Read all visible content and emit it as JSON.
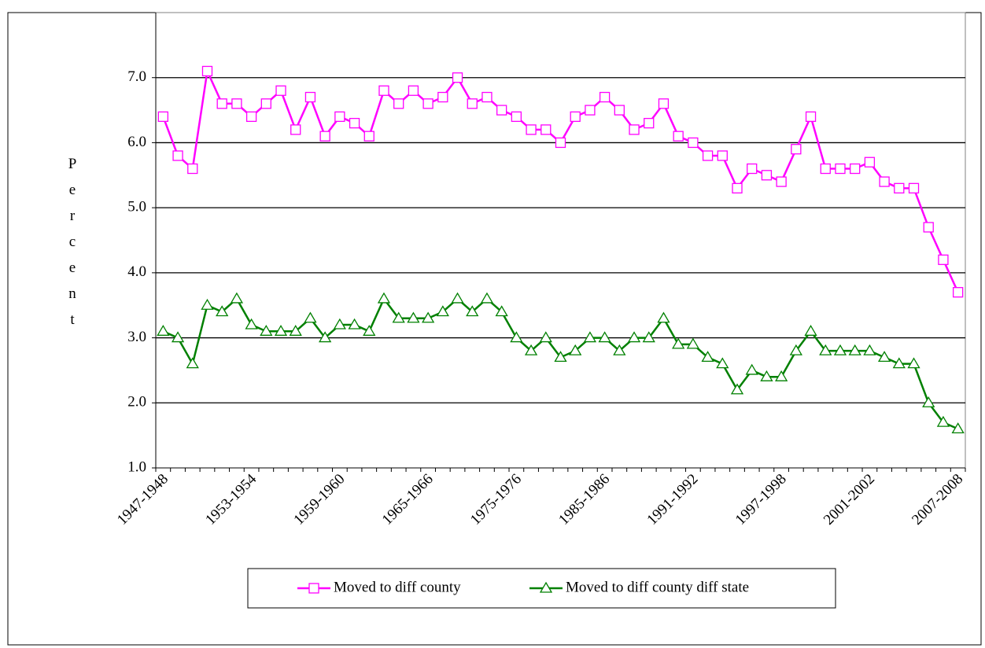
{
  "chart_data": {
    "type": "line",
    "y_label": "Percent",
    "categories": [
      "1947-1948",
      null,
      null,
      null,
      null,
      null,
      "1953-1954",
      null,
      null,
      null,
      null,
      null,
      "1959-1960",
      null,
      null,
      null,
      null,
      null,
      "1965-1966",
      null,
      null,
      null,
      null,
      null,
      "1975-1976",
      null,
      null,
      null,
      null,
      null,
      "1985-1986",
      null,
      null,
      null,
      null,
      null,
      "1991-1992",
      null,
      null,
      null,
      null,
      null,
      "1997-1998",
      null,
      null,
      null,
      null,
      null,
      "2001-2002",
      null,
      null,
      null,
      null,
      null,
      "2007-2008"
    ],
    "series": [
      {
        "name": "Moved to diff county",
        "color": "#ff00ff",
        "marker": "square",
        "values": [
          6.4,
          5.8,
          5.6,
          7.1,
          6.6,
          6.6,
          6.4,
          6.6,
          6.8,
          6.2,
          6.7,
          6.1,
          6.4,
          6.3,
          6.1,
          6.8,
          6.6,
          6.8,
          6.6,
          6.7,
          7.0,
          6.6,
          6.7,
          6.5,
          6.4,
          6.2,
          6.2,
          6.0,
          6.4,
          6.5,
          6.7,
          6.5,
          6.2,
          6.3,
          6.6,
          6.1,
          6.0,
          5.8,
          5.8,
          5.3,
          5.6,
          5.5,
          5.4,
          5.9,
          6.4,
          5.6,
          5.6,
          5.6,
          5.7,
          5.4,
          5.3,
          5.3,
          4.7,
          4.2,
          3.7
        ]
      },
      {
        "name": "Moved to diff county diff state",
        "color": "#008000",
        "marker": "triangle",
        "values": [
          3.1,
          3.0,
          2.6,
          3.5,
          3.4,
          3.6,
          3.2,
          3.1,
          3.1,
          3.1,
          3.3,
          3.0,
          3.2,
          3.2,
          3.1,
          3.6,
          3.3,
          3.3,
          3.3,
          3.4,
          3.6,
          3.4,
          3.6,
          3.4,
          3.0,
          2.8,
          3.0,
          2.7,
          2.8,
          3.0,
          3.0,
          2.8,
          3.0,
          3.0,
          3.3,
          2.9,
          2.9,
          2.7,
          2.6,
          2.2,
          2.5,
          2.4,
          2.4,
          2.8,
          3.1,
          2.8,
          2.8,
          2.8,
          2.8,
          2.7,
          2.6,
          2.6,
          2.0,
          1.7,
          1.6
        ]
      }
    ],
    "ylim": [
      1,
      8
    ],
    "yticks": [
      {
        "value": 1,
        "label": "1.0"
      },
      {
        "value": 2,
        "label": "2.0"
      },
      {
        "value": 3,
        "label": "3.0"
      },
      {
        "value": 4,
        "label": "4.0"
      },
      {
        "value": 5,
        "label": "5.0"
      },
      {
        "value": 6,
        "label": "6.0"
      },
      {
        "value": 7,
        "label": "7.0"
      }
    ],
    "grid": true,
    "legend": "bottom"
  }
}
